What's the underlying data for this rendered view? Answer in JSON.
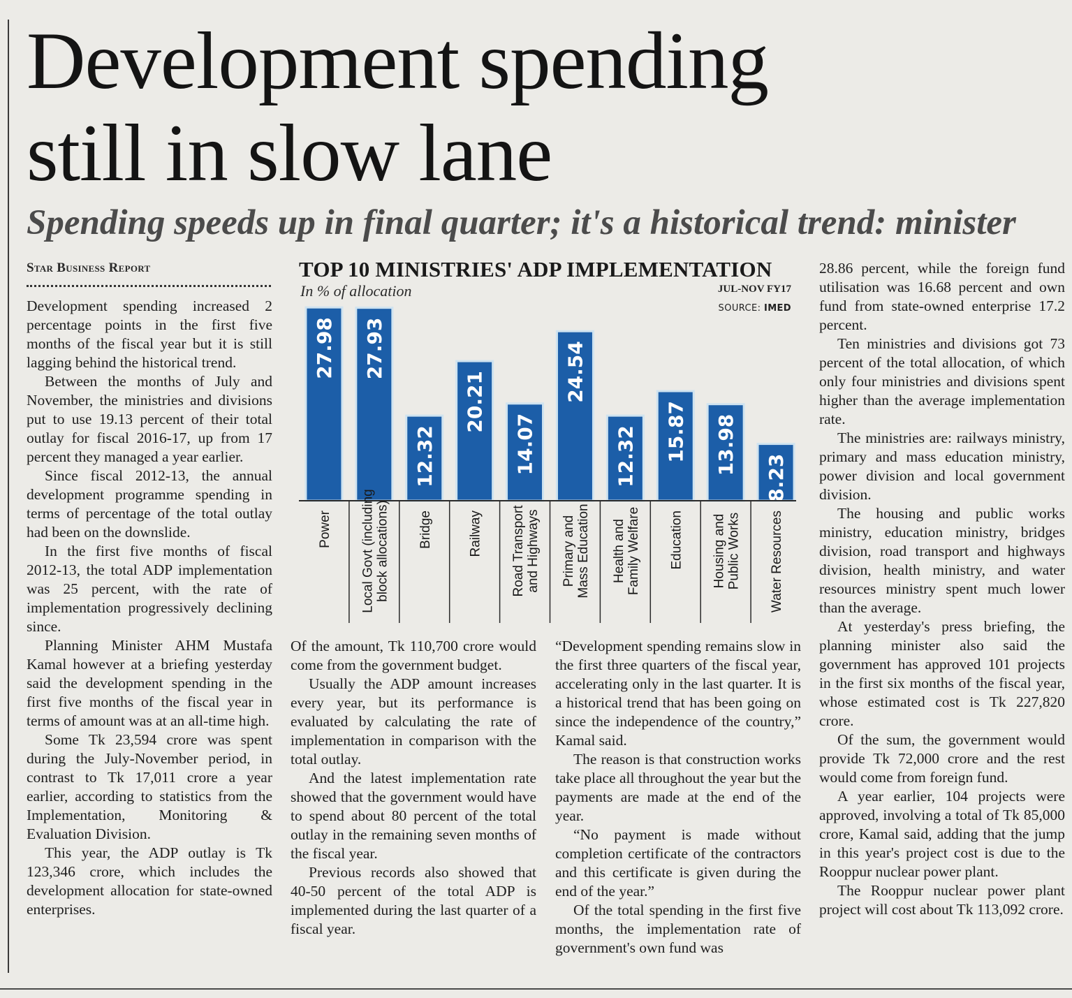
{
  "article": {
    "headline_line1": "Development spending",
    "headline_line2": "still in slow lane",
    "subheadline": "Spending speeds up in final quarter; it's a historical trend: minister",
    "byline": "Star Business Report",
    "columns": [
      [
        "Development spending increased 2 percentage points in the first five months of the fiscal year but it is still lagging behind the historical trend.",
        "Between the months of July and November, the ministries and divisions put to use 19.13 percent of their total outlay for fiscal 2016-17, up from 17 percent they managed a year earlier.",
        "Since fiscal 2012-13, the annual development programme spending in terms of percentage of the total outlay had been on the downslide.",
        "In the first five months of fiscal 2012-13, the total ADP implementation was 25 percent, with the rate of implementation progressively declining since.",
        "Planning Minister AHM Mustafa Kamal however at a briefing yesterday said the development spending in the first five months of the fiscal year in terms of amount was at an all-time high.",
        "Some Tk 23,594 crore was spent during the July-November period, in contrast to Tk 17,011 crore a year earlier, according to statistics from the Implementation, Monitoring & Evaluation Division.",
        "This year, the ADP outlay is Tk 123,346 crore, which includes the development allocation for state-owned enterprises."
      ],
      [
        "Of the amount, Tk 110,700 crore would come from the government budget.",
        "Usually the ADP amount increases every year, but its performance is evaluated by calculating the rate of implementation in comparison with the total outlay.",
        "And the latest implementation rate showed that the government would have to spend about 80 percent of the total outlay in the remaining seven months of the fiscal year.",
        "Previous records also showed that 40-50 percent of the total ADP is implemented during the last quarter of a fiscal year."
      ],
      [
        "“Development spending remains slow in the first three quarters of the fiscal year, accelerating only in the last quarter. It is a historical trend that has been going on since the independence of the country,” Kamal said.",
        "The reason is that construction works take place all throughout the year but the payments are made at the end of the year.",
        "“No payment is made without completion certificate of the contractors and this certificate is given during the end of the year.”",
        "Of the total spending in the first five months, the implementation rate of government's own fund was"
      ],
      [
        "28.86 percent, while the foreign fund utilisation was 16.68 percent and own fund from state-owned enterprise 17.2 percent.",
        "Ten ministries and divisions got 73 percent of the total allocation, of which only four ministries and divisions spent higher than the average implementation rate.",
        "The ministries are: railways ministry, primary and mass education ministry, power division and local government division.",
        "The housing and public works ministry, education ministry, bridges division, road transport and highways division, health ministry, and water resources ministry spent much lower than the average.",
        "At yesterday's press briefing, the planning minister also said the government has approved 101 projects in the first six months of the fiscal year, whose estimated cost is Tk 227,820 crore.",
        "Of the sum, the government would provide Tk 72,000 crore and the rest would come from foreign fund.",
        "A year earlier, 104 projects were approved, involving a total of Tk 85,000 crore, Kamal said, adding that the jump in this year's project cost is due to the Rooppur nuclear power plant.",
        "The Rooppur nuclear power plant project will cost about Tk 113,092 crore."
      ]
    ]
  },
  "chart_data": {
    "type": "bar",
    "title": "TOP 10 MINISTRIES' ADP IMPLEMENTATION",
    "subtitle": "In % of allocation",
    "period": "JUL-NOV FY17",
    "source_label": "SOURCE:",
    "source": "IMED",
    "categories": [
      [
        "Power"
      ],
      [
        "Local Govt (including",
        "block allocations)"
      ],
      [
        "Bridge"
      ],
      [
        "Railway"
      ],
      [
        "Road Transport",
        "and Highways"
      ],
      [
        "Primary and",
        "Mass Education"
      ],
      [
        "Health and",
        "Family Welfare"
      ],
      [
        "Education"
      ],
      [
        "Housing and",
        "Public Works"
      ],
      [
        "Water Resources"
      ]
    ],
    "values": [
      27.98,
      27.93,
      12.32,
      20.21,
      14.07,
      24.54,
      12.32,
      15.87,
      13.98,
      8.23
    ],
    "value_labels": [
      "27.98",
      "27.93",
      "12.32",
      "20.21",
      "14.07",
      "24.54",
      "12.32",
      "15.87",
      "13.98",
      "8.23"
    ],
    "ylim": [
      0,
      28
    ],
    "bar_color": "#1c5ea8",
    "bar_outline_color": "#cfe3f0",
    "label_color": "#ffffff",
    "grid": false,
    "legend": "none"
  }
}
